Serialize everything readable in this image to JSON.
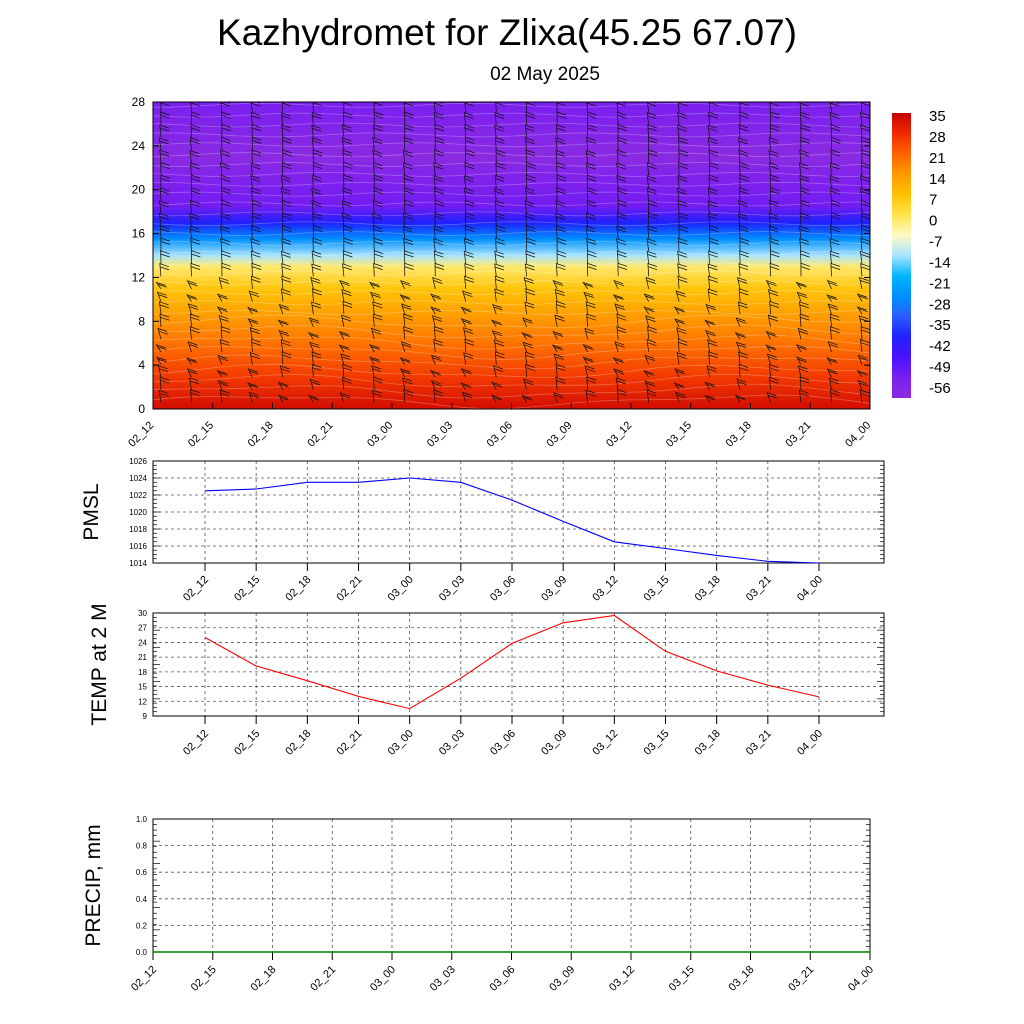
{
  "header": {
    "title": "Kazhydromet for Zlixa(45.25 67.07)",
    "date": "02 May 2025"
  },
  "time_labels": [
    "02_12",
    "02_15",
    "02_18",
    "02_21",
    "03_00",
    "03_03",
    "03_06",
    "03_09",
    "03_12",
    "03_15",
    "03_18",
    "03_21",
    "04_00"
  ],
  "chart_data": [
    {
      "type": "heatmap",
      "name": "cross-section",
      "x": [
        "02_12",
        "02_15",
        "02_18",
        "02_21",
        "03_00",
        "03_03",
        "03_06",
        "03_09",
        "03_12",
        "03_15",
        "03_18",
        "03_21",
        "04_00"
      ],
      "y_ticks": [
        0,
        4,
        8,
        12,
        16,
        20,
        24,
        28
      ],
      "ylim": [
        0,
        28
      ],
      "colorbar_ticks": [
        35,
        28,
        21,
        14,
        7,
        0,
        -7,
        -14,
        -21,
        -28,
        -35,
        -42,
        -49,
        -56
      ],
      "colorbar_range": [
        -63,
        35
      ],
      "profile": [
        {
          "level": 0,
          "value": 33
        },
        {
          "level": 3,
          "value": 26
        },
        {
          "level": 6,
          "value": 19
        },
        {
          "level": 9,
          "value": 12
        },
        {
          "level": 11,
          "value": 6
        },
        {
          "level": 13,
          "value": -2
        },
        {
          "level": 14,
          "value": -14
        },
        {
          "level": 15.5,
          "value": -28
        },
        {
          "level": 17,
          "value": -42
        },
        {
          "level": 18.5,
          "value": -55
        },
        {
          "level": 21,
          "value": -58
        },
        {
          "level": 23,
          "value": -63
        },
        {
          "level": 25,
          "value": -60
        },
        {
          "level": 28,
          "value": -56
        }
      ],
      "wind_barbs": true,
      "colors": {
        "hot": "#c80000",
        "warm": "#ff8c00",
        "neutral": "#fff9c4",
        "cool": "#00aaff",
        "cold": "#2020ff",
        "coldest": "#8a2be2"
      }
    },
    {
      "type": "line",
      "ylabel": "PMSL",
      "ylim": [
        1014,
        1026
      ],
      "y_ticks": [
        1014,
        1016,
        1018,
        1020,
        1022,
        1024,
        1026
      ],
      "x": [
        "02_12",
        "02_15",
        "02_18",
        "02_21",
        "03_00",
        "03_03",
        "03_06",
        "03_09",
        "03_12",
        "03_15",
        "03_18",
        "03_21",
        "04_00"
      ],
      "values": [
        1022.5,
        1022.7,
        1023.5,
        1023.5,
        1024.0,
        1023.5,
        1021.4,
        1018.9,
        1016.5,
        1015.7,
        1014.9,
        1014.2,
        1014.0
      ],
      "color": "#0000ff"
    },
    {
      "type": "line",
      "ylabel": "TEMP at 2 M",
      "ylim": [
        9,
        30
      ],
      "y_ticks": [
        9,
        12,
        15,
        18,
        21,
        24,
        27,
        30
      ],
      "x": [
        "02_12",
        "02_15",
        "02_18",
        "02_21",
        "03_00",
        "03_03",
        "03_06",
        "03_09",
        "03_12",
        "03_15",
        "03_18",
        "03_21",
        "04_00"
      ],
      "values": [
        25.0,
        19.2,
        16.2,
        13.0,
        10.5,
        16.7,
        23.8,
        28.0,
        29.5,
        22.2,
        18.2,
        15.3,
        12.9
      ],
      "color": "#ff0000"
    },
    {
      "type": "line",
      "ylabel": "PRECIP, mm",
      "ylim": [
        0.0,
        1.0
      ],
      "y_ticks": [
        "0.0",
        "0.2",
        "0.4",
        "0.6",
        "0.8",
        "1.0"
      ],
      "x": [
        "02_12",
        "02_15",
        "02_18",
        "02_21",
        "03_00",
        "03_03",
        "03_06",
        "03_09",
        "03_12",
        "03_15",
        "03_18",
        "03_21",
        "04_00"
      ],
      "values": [
        0,
        0,
        0,
        0,
        0,
        0,
        0,
        0,
        0,
        0,
        0,
        0,
        0
      ],
      "color": "#008000"
    }
  ]
}
